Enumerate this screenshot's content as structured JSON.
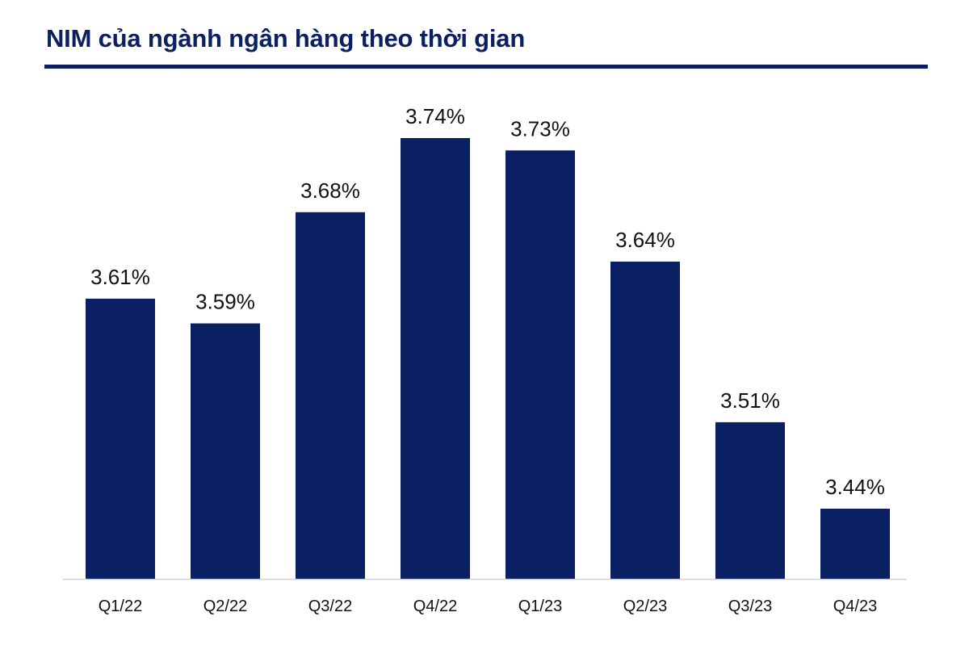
{
  "title": "NIM của ngành ngân hàng theo thời gian",
  "colors": {
    "title": "#0b2062",
    "bar": "#0b2062",
    "axis": "#d0d0d0"
  },
  "chart_data": {
    "type": "bar",
    "title": "NIM của ngành ngân hàng theo thời gian",
    "categories": [
      "Q1/22",
      "Q2/22",
      "Q3/22",
      "Q4/22",
      "Q1/23",
      "Q2/23",
      "Q3/23",
      "Q4/23"
    ],
    "values": [
      3.61,
      3.59,
      3.68,
      3.74,
      3.73,
      3.64,
      3.51,
      3.44
    ],
    "value_labels": [
      "3.61%",
      "3.59%",
      "3.68%",
      "3.74%",
      "3.73%",
      "3.64%",
      "3.51%",
      "3.44%"
    ],
    "xlabel": "",
    "ylabel": "",
    "grid": false,
    "legend": "none"
  }
}
